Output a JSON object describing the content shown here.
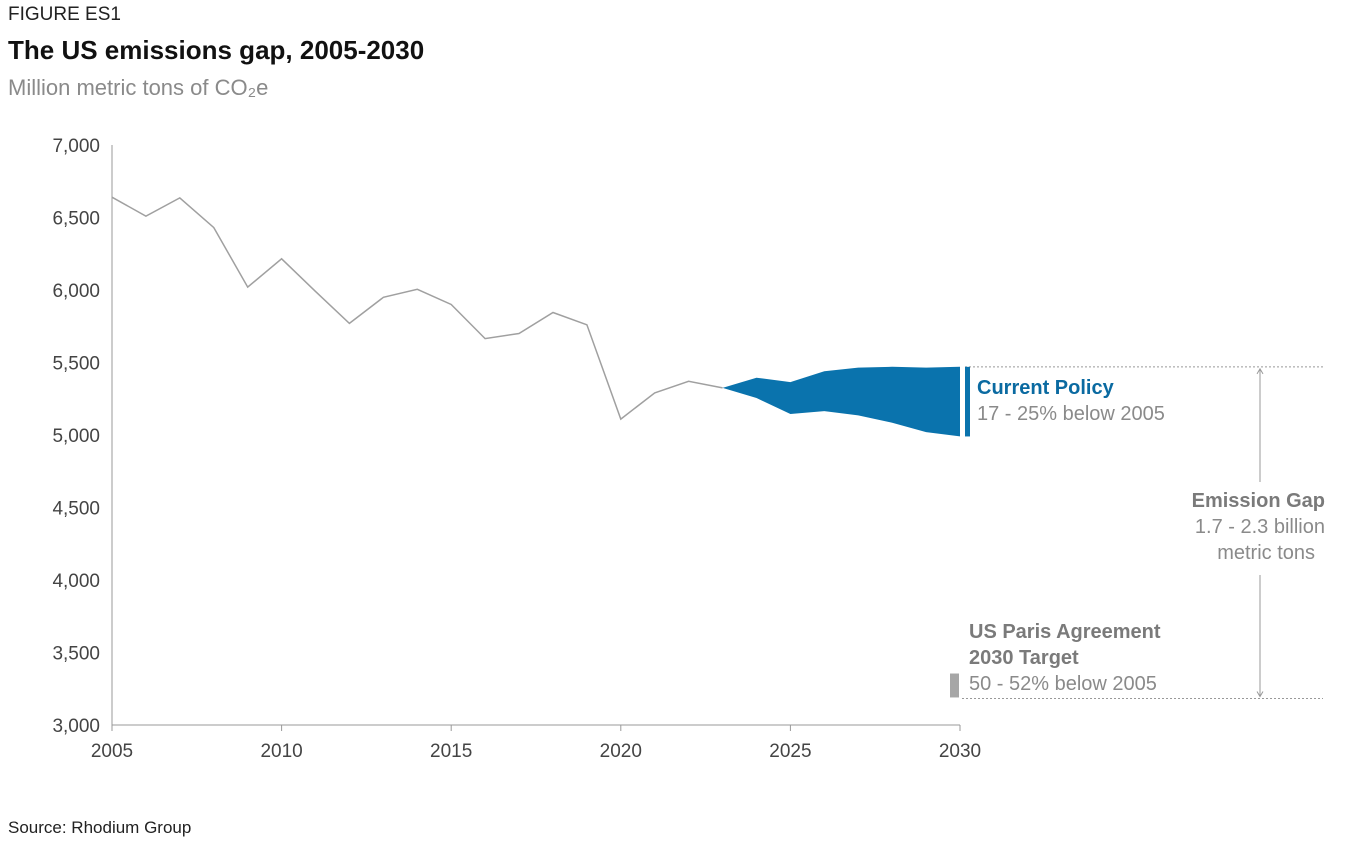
{
  "figure_label": "FIGURE ES1",
  "title": "The US emissions gap, 2005-2030",
  "subtitle": "Million metric tons of CO₂e",
  "source": "Source: Rhodium Group",
  "colors": {
    "historical_line": "#a0a0a0",
    "projection_band": "#0a73ad",
    "target_bar": "#a6a6a6",
    "axis": "#999999"
  },
  "chart_data": {
    "type": "line",
    "xlim": [
      2005,
      2030
    ],
    "ylim": [
      3000,
      7000
    ],
    "x_ticks": [
      2005,
      2010,
      2015,
      2020,
      2025,
      2030
    ],
    "y_ticks": [
      3000,
      3500,
      4000,
      4500,
      5000,
      5500,
      6000,
      6500,
      7000
    ],
    "x_tick_labels": [
      "2005",
      "2010",
      "2015",
      "2020",
      "2025",
      "2030"
    ],
    "y_tick_labels": [
      "3,000",
      "3,500",
      "4,000",
      "4,500",
      "5,000",
      "5,500",
      "6,000",
      "6,500",
      "7,000"
    ],
    "grid": false,
    "historical": {
      "x": [
        2005,
        2006,
        2007,
        2008,
        2009,
        2010,
        2011,
        2012,
        2013,
        2014,
        2015,
        2016,
        2017,
        2018,
        2019,
        2020,
        2021,
        2022,
        2023
      ],
      "y": [
        6640,
        6510,
        6635,
        6430,
        6020,
        6215,
        5990,
        5770,
        5950,
        6005,
        5900,
        5665,
        5700,
        5845,
        5760,
        5110,
        5290,
        5370,
        5325
      ]
    },
    "current_policy_range": {
      "x": [
        2023,
        2024,
        2025,
        2026,
        2027,
        2028,
        2029,
        2030
      ],
      "upper": [
        5325,
        5395,
        5365,
        5440,
        5465,
        5470,
        5465,
        5470
      ],
      "lower": [
        5325,
        5255,
        5145,
        5165,
        5135,
        5085,
        5020,
        4990
      ]
    },
    "paris_target_range": {
      "x": 2030,
      "lower": 3190,
      "upper": 3355
    },
    "annotations": {
      "current_policy_title": "Current Policy",
      "current_policy_detail": "17 - 25% below 2005",
      "gap_title": "Emission Gap",
      "gap_detail_line1": "1.7 - 2.3 billion",
      "gap_detail_line2": "metric tons",
      "target_title_line1": "US Paris Agreement",
      "target_title_line2": "2030 Target",
      "target_detail": "50 - 52% below 2005"
    }
  }
}
